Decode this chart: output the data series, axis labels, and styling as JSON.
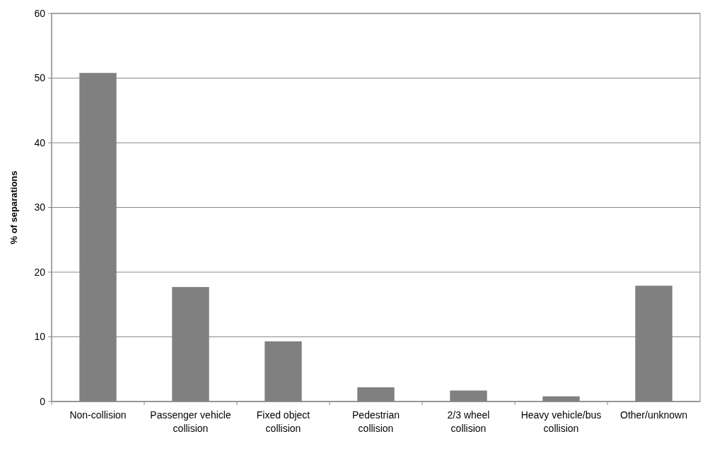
{
  "chart_data": {
    "type": "bar",
    "ylabel": "% of separations",
    "categories": [
      "Non-collision",
      "Passenger vehicle collision",
      "Fixed object collision",
      "Pedestrian collision",
      "2/3 wheel collision",
      "Heavy vehicle/bus collision",
      "Other/unknown"
    ],
    "values": [
      50.8,
      17.7,
      9.3,
      2.2,
      1.7,
      0.8,
      17.9
    ],
    "color": "#808080",
    "ylim": [
      0,
      60
    ],
    "yticks": [
      0,
      10,
      20,
      30,
      40,
      50,
      60
    ],
    "grid": "y"
  }
}
